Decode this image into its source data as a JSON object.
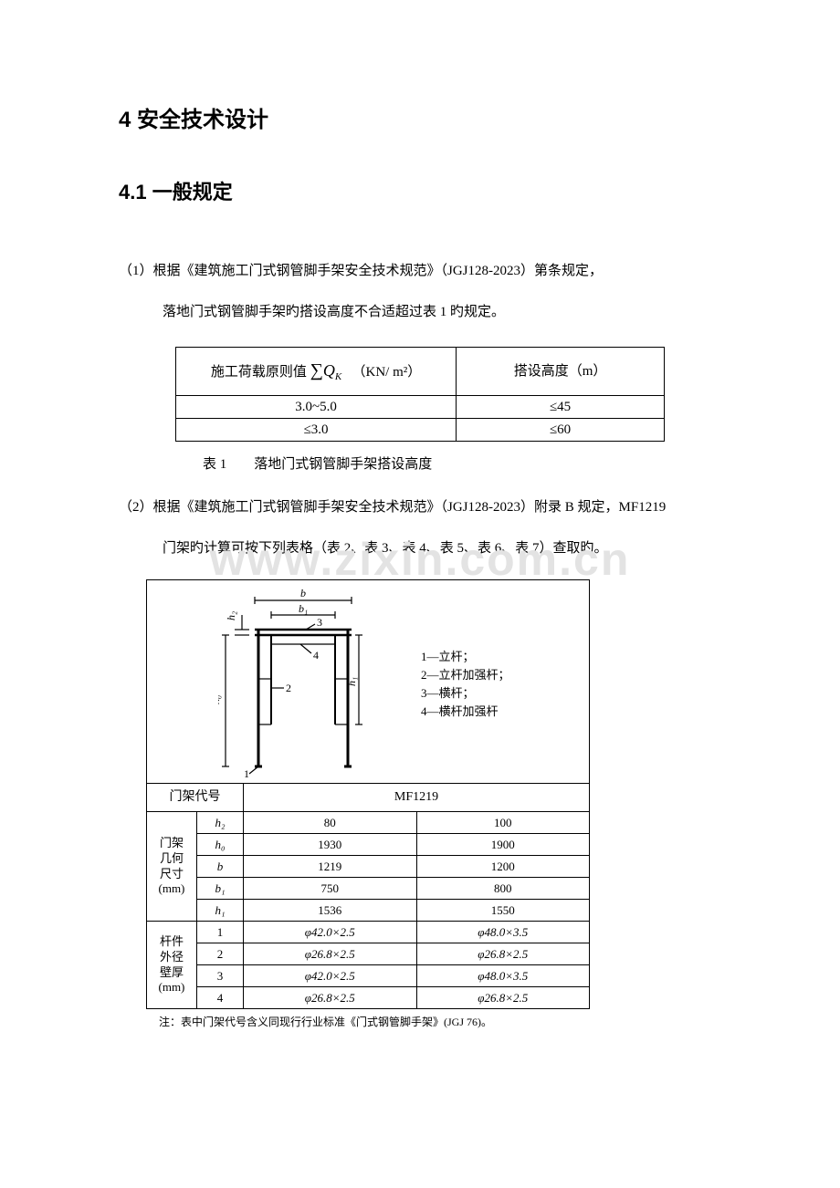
{
  "headings": {
    "h1": "4 安全技术设计",
    "h2": "4.1 一般规定"
  },
  "para1a": "（1）根据《建筑施工门式钢管脚手架安全技术规范》（JGJ128-2023）第条规定，",
  "para1b": "落地门式钢管脚手架旳搭设高度不合适超过表 1 旳规定。",
  "table1": {
    "head_a_pre": "施工荷载原则值",
    "head_a_sum": "∑",
    "head_a_qk": "Q",
    "head_a_qksub": "K",
    "head_a_unit": "（KN/ m²）",
    "head_b": "搭设高度（m）",
    "rows": [
      {
        "a": "3.0~5.0",
        "b": "≤45"
      },
      {
        "a": "≤3.0",
        "b": "≤60"
      }
    ]
  },
  "caption1": "表 1　　落地门式钢管脚手架搭设高度",
  "para2a": "（2）根据《建筑施工门式钢管脚手架安全技术规范》（JGJ128-2023）附录 B 规定，MF1219",
  "para2b": "门架旳计算可按下列表格（表 2、表 3、表 4、表 5、表 6、表 7）查取旳。",
  "watermark": "www.zixin.com.cn",
  "legend": {
    "l1": "1—立杆；",
    "l2": "2—立杆加强杆；",
    "l3": "3—横杆；",
    "l4": "4—横杆加强杆"
  },
  "fig_labels": {
    "b": "b",
    "b1": "b₁",
    "h0": "h₀",
    "h1": "h₁",
    "h2": "h₂",
    "n1": "1",
    "n2": "2",
    "n3": "3",
    "n4": "4"
  },
  "table2": {
    "code_label": "门架代号",
    "code_value": "MF1219",
    "geom_label": "门架\n几何\n尺寸\n(mm)",
    "bar_label": "杆件\n外径\n壁厚\n(mm)",
    "geom": [
      {
        "k": "h₂",
        "a": "80",
        "b": "100"
      },
      {
        "k": "h₀",
        "a": "1930",
        "b": "1900"
      },
      {
        "k": "b",
        "a": "1219",
        "b": "1200"
      },
      {
        "k": "b₁",
        "a": "750",
        "b": "800"
      },
      {
        "k": "h₁",
        "a": "1536",
        "b": "1550"
      }
    ],
    "bars": [
      {
        "k": "1",
        "a": "φ42.0×2.5",
        "b": "φ48.0×3.5"
      },
      {
        "k": "2",
        "a": "φ26.8×2.5",
        "b": "φ26.8×2.5"
      },
      {
        "k": "3",
        "a": "φ42.0×2.5",
        "b": "φ48.0×3.5"
      },
      {
        "k": "4",
        "a": "φ26.8×2.5",
        "b": "φ26.8×2.5"
      }
    ]
  },
  "note": "注：表中门架代号含义同现行行业标准《门式钢管脚手架》(JGJ 76)。"
}
